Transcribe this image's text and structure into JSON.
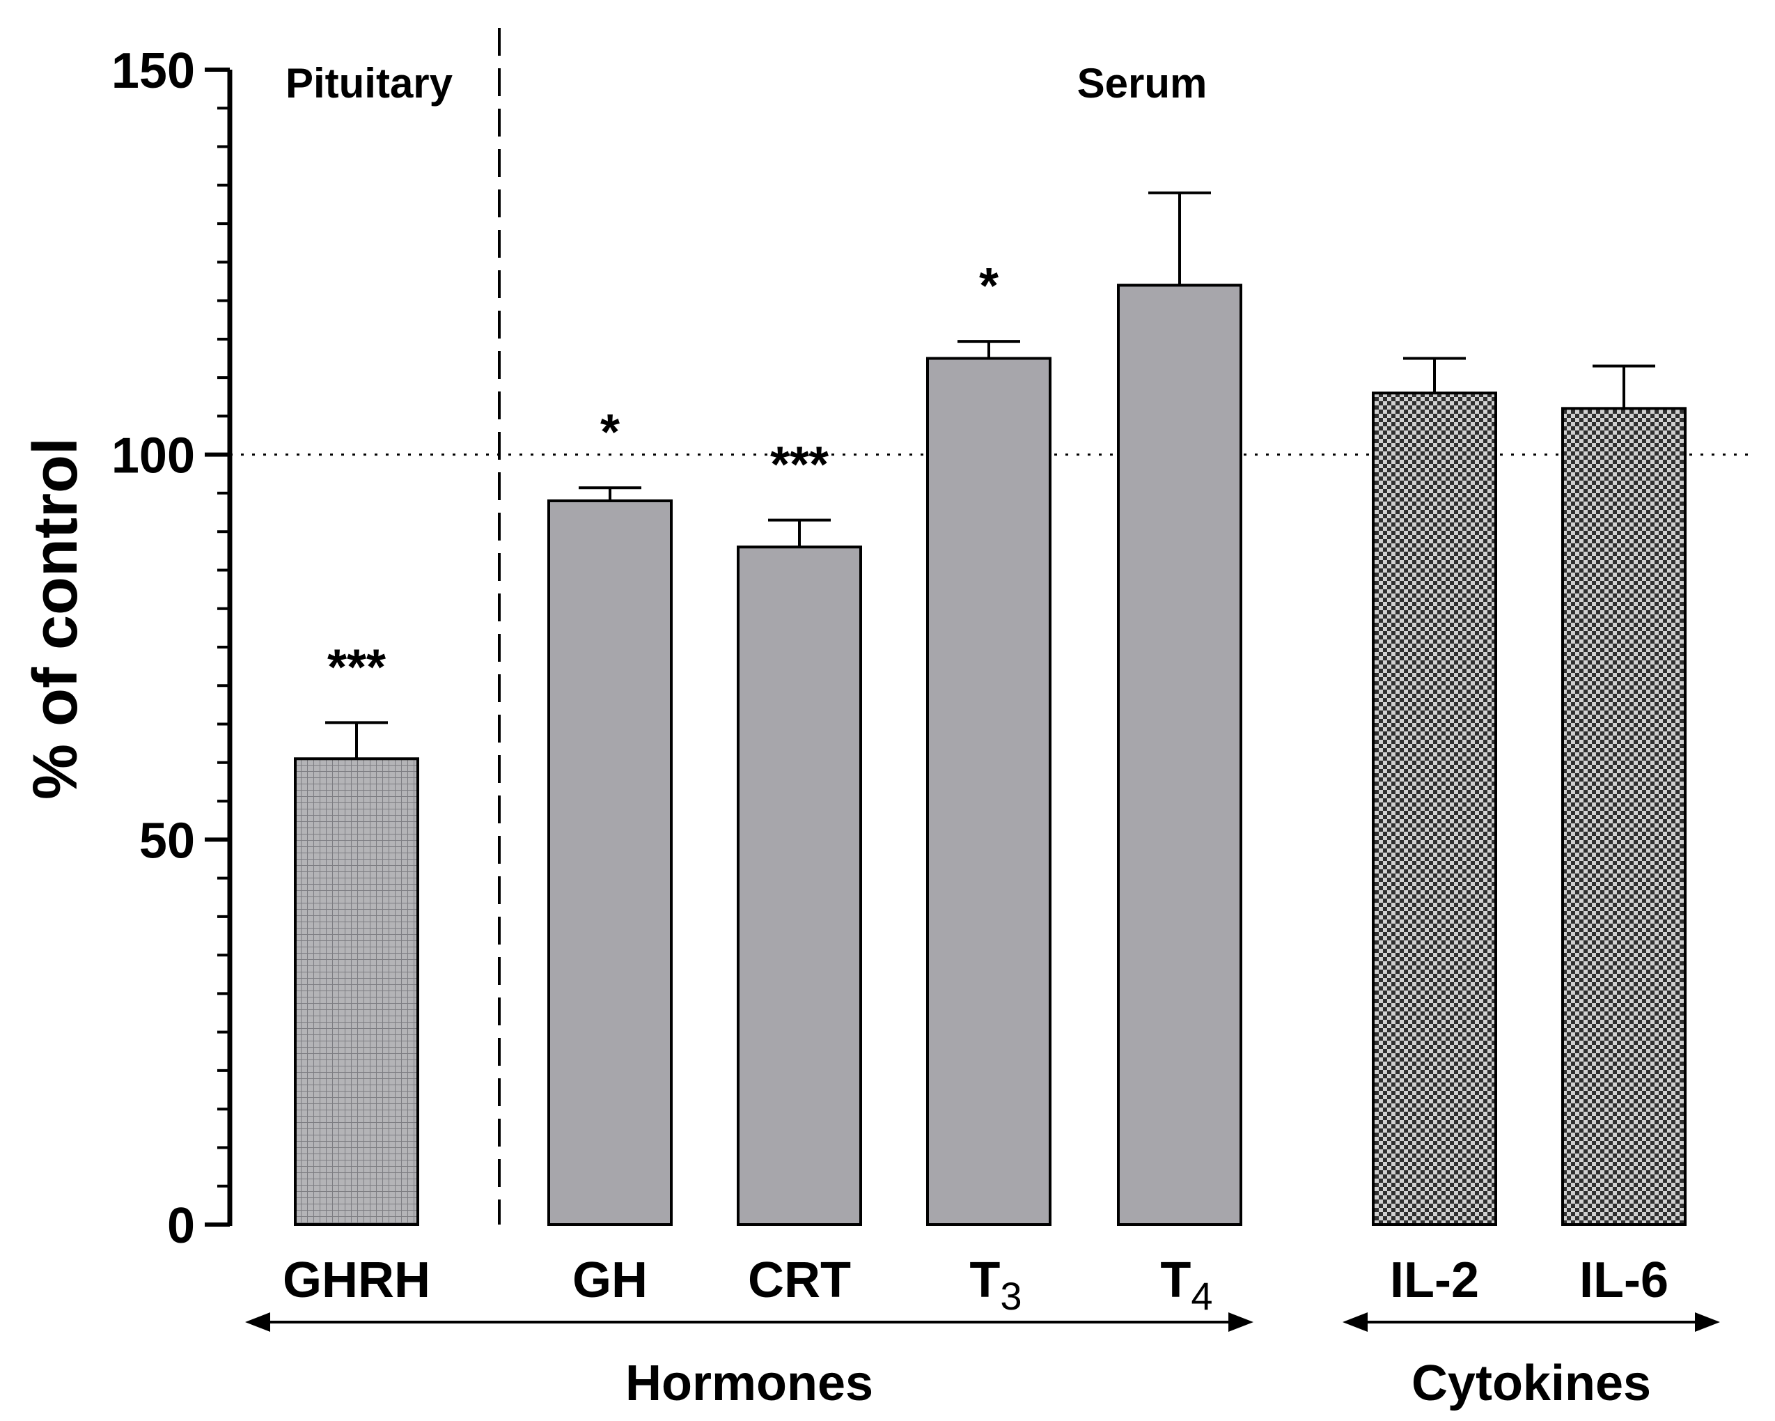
{
  "chart_data": {
    "type": "bar",
    "ylabel": "% of control",
    "ylim": [
      0,
      150
    ],
    "yticks": [
      0,
      50,
      100,
      150
    ],
    "minor_tick_step": 5,
    "reference_line": 100,
    "regions": {
      "left": "Pituitary",
      "right": "Serum"
    },
    "bars": [
      {
        "label": "GHRH",
        "sub": "",
        "value": 60.5,
        "error": 4.7,
        "sig": "***",
        "pattern": "grid"
      },
      {
        "label": "GH",
        "sub": "",
        "value": 94,
        "error": 1.7,
        "sig": "*",
        "pattern": "solid"
      },
      {
        "label": "CRT",
        "sub": "",
        "value": 88,
        "error": 3.5,
        "sig": "***",
        "pattern": "solid"
      },
      {
        "label": "T",
        "sub": "3",
        "value": 112.5,
        "error": 2.2,
        "sig": "*",
        "pattern": "solid"
      },
      {
        "label": "T",
        "sub": "4",
        "value": 122,
        "error": 12,
        "sig": "",
        "pattern": "solid"
      },
      {
        "label": "IL-2",
        "sub": "",
        "value": 108,
        "error": 4.5,
        "sig": "",
        "pattern": "checker"
      },
      {
        "label": "IL-6",
        "sub": "",
        "value": 106,
        "error": 5.5,
        "sig": "",
        "pattern": "checker"
      }
    ],
    "groups": [
      {
        "label": "Hormones",
        "from": 0,
        "to": 4
      },
      {
        "label": "Cytokines",
        "from": 5,
        "to": 6
      }
    ],
    "colors": {
      "bar": "#a7a6ab",
      "grid_pattern": "#8f8f93",
      "checker_dark": "#3a3a3a",
      "checker_light": "#c8c8c8"
    }
  }
}
